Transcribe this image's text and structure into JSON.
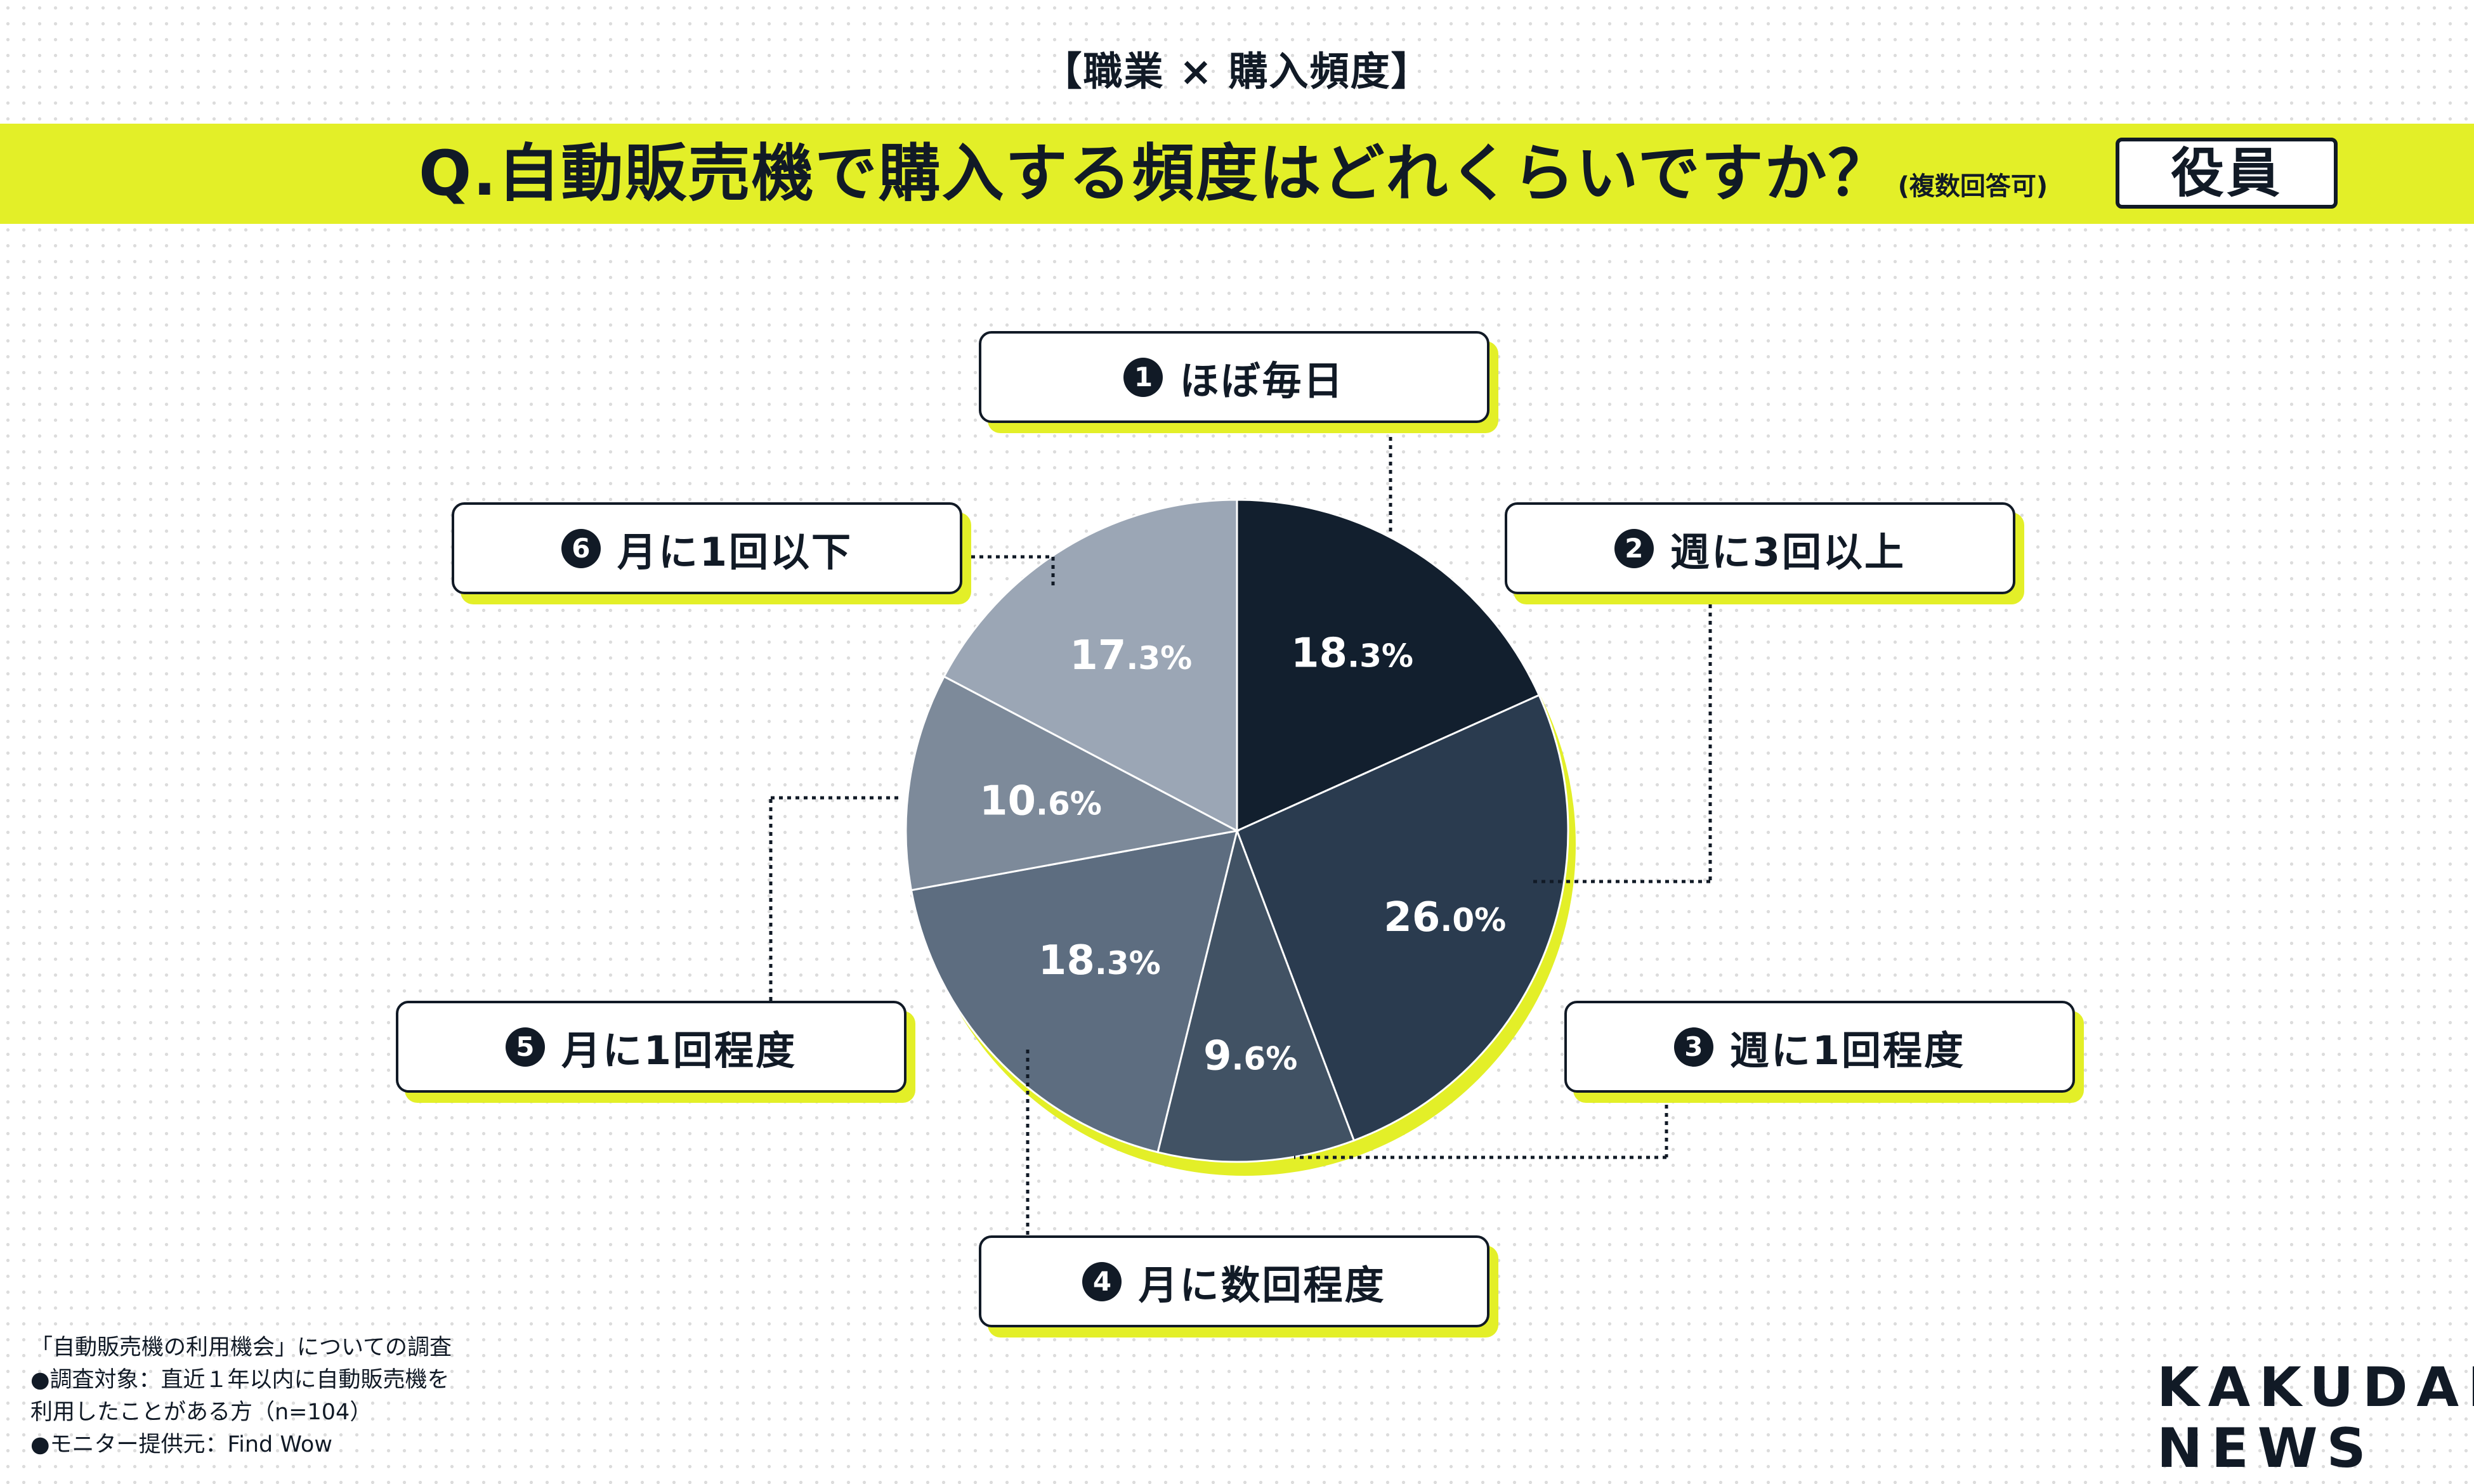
{
  "header": {
    "category": "【職業 × 購入頻度】",
    "question": "Q.自動販売機で購入する頻度はどれくらいですか？",
    "note": "(複数回答可)",
    "role": "役員"
  },
  "chart_data": {
    "type": "pie",
    "title": "Q.自動販売機で購入する頻度はどれくらいですか？",
    "start_angle": "12 o'clock",
    "direction": "clockwise",
    "slices": [
      {
        "id": 1,
        "marker": "1",
        "label": "ほぼ毎日",
        "value": 18.3,
        "value_text": "18.3%",
        "color": "#121f2e"
      },
      {
        "id": 2,
        "marker": "2",
        "label": "週に3回以上",
        "value": 26.0,
        "value_text": "26.0%",
        "color": "#2a3b4f"
      },
      {
        "id": 3,
        "marker": "3",
        "label": "週に1回程度",
        "value": 9.6,
        "value_text": "9.6%",
        "color": "#415264"
      },
      {
        "id": 4,
        "marker": "4",
        "label": "月に数回程度",
        "value": 18.3,
        "value_text": "18.3%",
        "color": "#5d6d80"
      },
      {
        "id": 5,
        "marker": "5",
        "label": "月に1回程度",
        "value": 10.6,
        "value_text": "10.6%",
        "color": "#7d8a9a"
      },
      {
        "id": 6,
        "marker": "6",
        "label": "月に1回以下",
        "value": 17.3,
        "value_text": "17.3%",
        "color": "#9ba6b5"
      }
    ]
  },
  "footnote": {
    "line1": "「自動販売機の利用機会」についての調査",
    "line2": "●調査対象：直近１年以内に自動販売機を",
    "line3": "利用したことがある方（n=104）",
    "line4": "●モニター提供元：Find Wow"
  },
  "brand": {
    "line1": "KAKUDAI",
    "line2": "NEWS"
  },
  "colors": {
    "accent": "#e3ef28",
    "ink": "#111a26"
  }
}
